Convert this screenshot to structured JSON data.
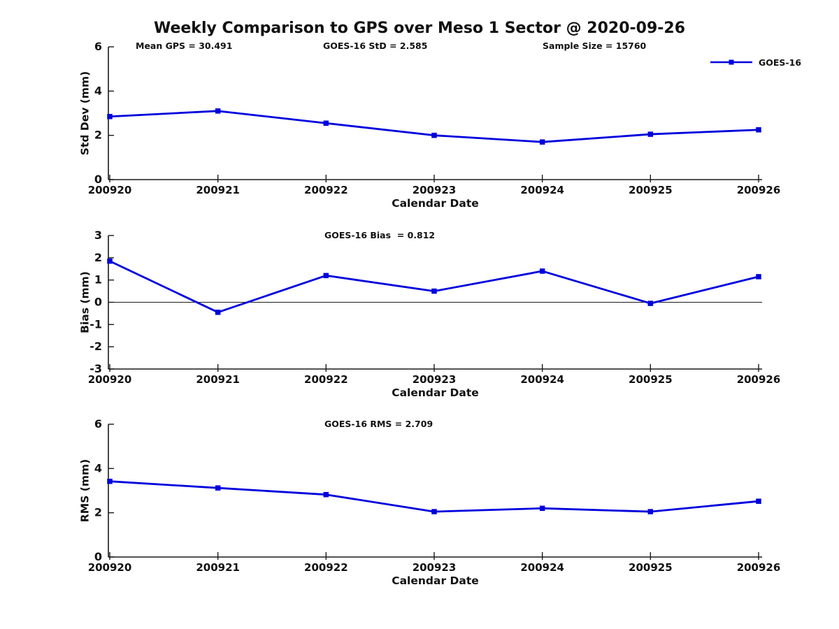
{
  "title": "Weekly Comparison to GPS over Meso 1 Sector @ 2020-09-26",
  "legend": {
    "label": "GOES-16",
    "position": "top-right"
  },
  "colors": {
    "series_blue": "#0000dd",
    "axis_black": "#1a1a1a",
    "background": "#ffffff"
  },
  "chart_data": [
    {
      "type": "line",
      "panel": "std-dev",
      "annotations": [
        "Mean GPS = 30.491",
        "GOES-16 StD = 2.585",
        "Sample Size = 15760"
      ],
      "categories": [
        "200920",
        "200921",
        "200922",
        "200923",
        "200924",
        "200925",
        "200926"
      ],
      "series": [
        {
          "name": "GOES-16",
          "values": [
            2.85,
            3.1,
            2.55,
            2.0,
            1.7,
            2.05,
            2.25
          ]
        }
      ],
      "xlabel": "Calendar Date",
      "ylabel": "Std Dev (mm)",
      "ylim": [
        0,
        6
      ],
      "yticks": [
        0,
        2,
        4,
        6
      ],
      "grid": false,
      "zero_line": false,
      "marker": "square"
    },
    {
      "type": "line",
      "panel": "bias",
      "annotations": [
        "GOES-16 Bias  = 0.812"
      ],
      "categories": [
        "200920",
        "200921",
        "200922",
        "200923",
        "200924",
        "200925",
        "200926"
      ],
      "series": [
        {
          "name": "GOES-16",
          "values": [
            1.85,
            -0.45,
            1.2,
            0.5,
            1.4,
            -0.05,
            1.15
          ]
        }
      ],
      "xlabel": "Calendar Date",
      "ylabel": "Bias (mm)",
      "ylim": [
        -3,
        3
      ],
      "yticks": [
        -3,
        -2,
        -1,
        0,
        1,
        2,
        3
      ],
      "grid": false,
      "zero_line": true,
      "marker": "square"
    },
    {
      "type": "line",
      "panel": "rms",
      "annotations": [
        "GOES-16 RMS = 2.709"
      ],
      "categories": [
        "200920",
        "200921",
        "200922",
        "200923",
        "200924",
        "200925",
        "200926"
      ],
      "series": [
        {
          "name": "GOES-16",
          "values": [
            3.42,
            3.12,
            2.82,
            2.05,
            2.2,
            2.05,
            2.52
          ]
        }
      ],
      "xlabel": "Calendar Date",
      "ylabel": "RMS (mm)",
      "ylim": [
        0,
        6
      ],
      "yticks": [
        0,
        2,
        4,
        6
      ],
      "grid": false,
      "zero_line": false,
      "marker": "square"
    }
  ]
}
